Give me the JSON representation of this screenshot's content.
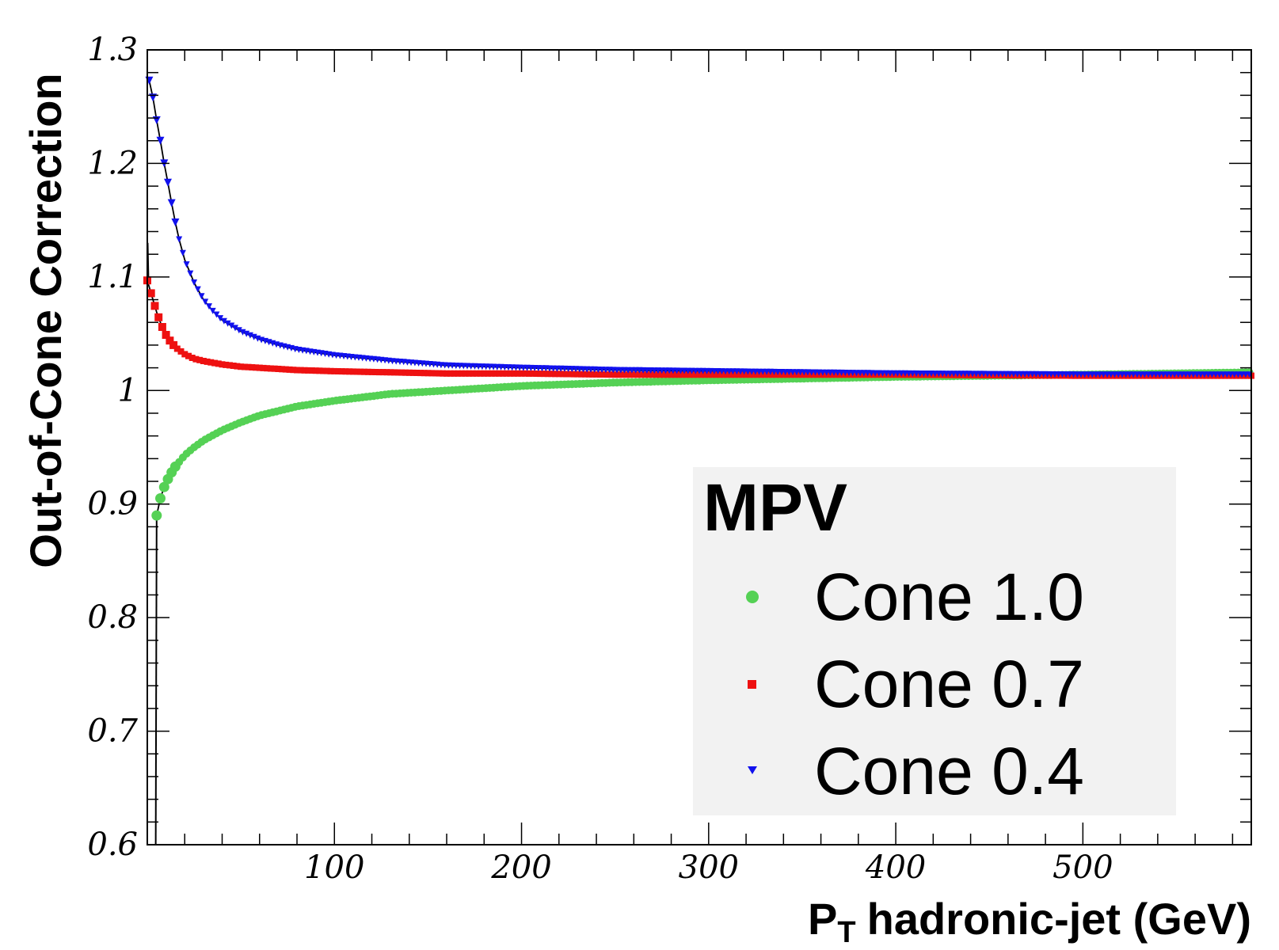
{
  "chart_data": {
    "type": "scatter",
    "title": "",
    "xlabel": "hadronic-jet (GeV)",
    "xlabel_main": "P",
    "xlabel_sub": "T",
    "ylabel": "Out-of-Cone Correction",
    "xlim": [
      0,
      590
    ],
    "ylim": [
      0.6,
      1.3
    ],
    "xticks": [
      "100",
      "200",
      "300",
      "400",
      "500"
    ],
    "yticks": [
      "0.6",
      "0.7",
      "0.8",
      "0.9",
      "1",
      "1.1",
      "1.2",
      "1.3"
    ],
    "grid": false,
    "legend": {
      "title": "MPV",
      "position": "bottom-right",
      "entries": [
        "Cone 1.0",
        "Cone 0.7",
        "Cone 0.4"
      ]
    },
    "series": [
      {
        "name": "Cone 1.0",
        "marker": "circle",
        "color": "#55d155",
        "x": [
          5,
          7,
          9,
          11,
          13,
          15,
          20,
          25,
          30,
          40,
          50,
          60,
          80,
          100,
          130,
          160,
          200,
          250,
          300,
          400,
          500,
          590
        ],
        "y": [
          0.89,
          0.905,
          0.915,
          0.922,
          0.928,
          0.933,
          0.943,
          0.95,
          0.956,
          0.965,
          0.972,
          0.978,
          0.986,
          0.991,
          0.997,
          1.0,
          1.004,
          1.007,
          1.009,
          1.012,
          1.014,
          1.016
        ]
      },
      {
        "name": "Cone 0.7",
        "marker": "square",
        "color": "#ee1111",
        "x": [
          0,
          3,
          5,
          7,
          9,
          11,
          13,
          15,
          20,
          25,
          30,
          40,
          50,
          60,
          80,
          100,
          130,
          160,
          200,
          250,
          300,
          400,
          500,
          590
        ],
        "y": [
          1.097,
          1.08,
          1.069,
          1.06,
          1.052,
          1.046,
          1.042,
          1.038,
          1.032,
          1.028,
          1.026,
          1.023,
          1.021,
          1.02,
          1.018,
          1.017,
          1.016,
          1.015,
          1.015,
          1.014,
          1.014,
          1.014,
          1.013,
          1.013
        ]
      },
      {
        "name": "Cone 0.4",
        "marker": "triangle-down",
        "color": "#1111ee",
        "x": [
          1,
          3,
          5,
          7,
          9,
          11,
          13,
          15,
          17,
          20,
          25,
          30,
          35,
          40,
          50,
          60,
          70,
          80,
          100,
          130,
          160,
          200,
          250,
          300,
          400,
          500,
          590
        ],
        "y": [
          1.273,
          1.258,
          1.238,
          1.22,
          1.2,
          1.183,
          1.165,
          1.148,
          1.133,
          1.115,
          1.095,
          1.08,
          1.07,
          1.062,
          1.052,
          1.045,
          1.04,
          1.036,
          1.031,
          1.026,
          1.022,
          1.02,
          1.018,
          1.017,
          1.015,
          1.014,
          1.014
        ]
      }
    ]
  }
}
